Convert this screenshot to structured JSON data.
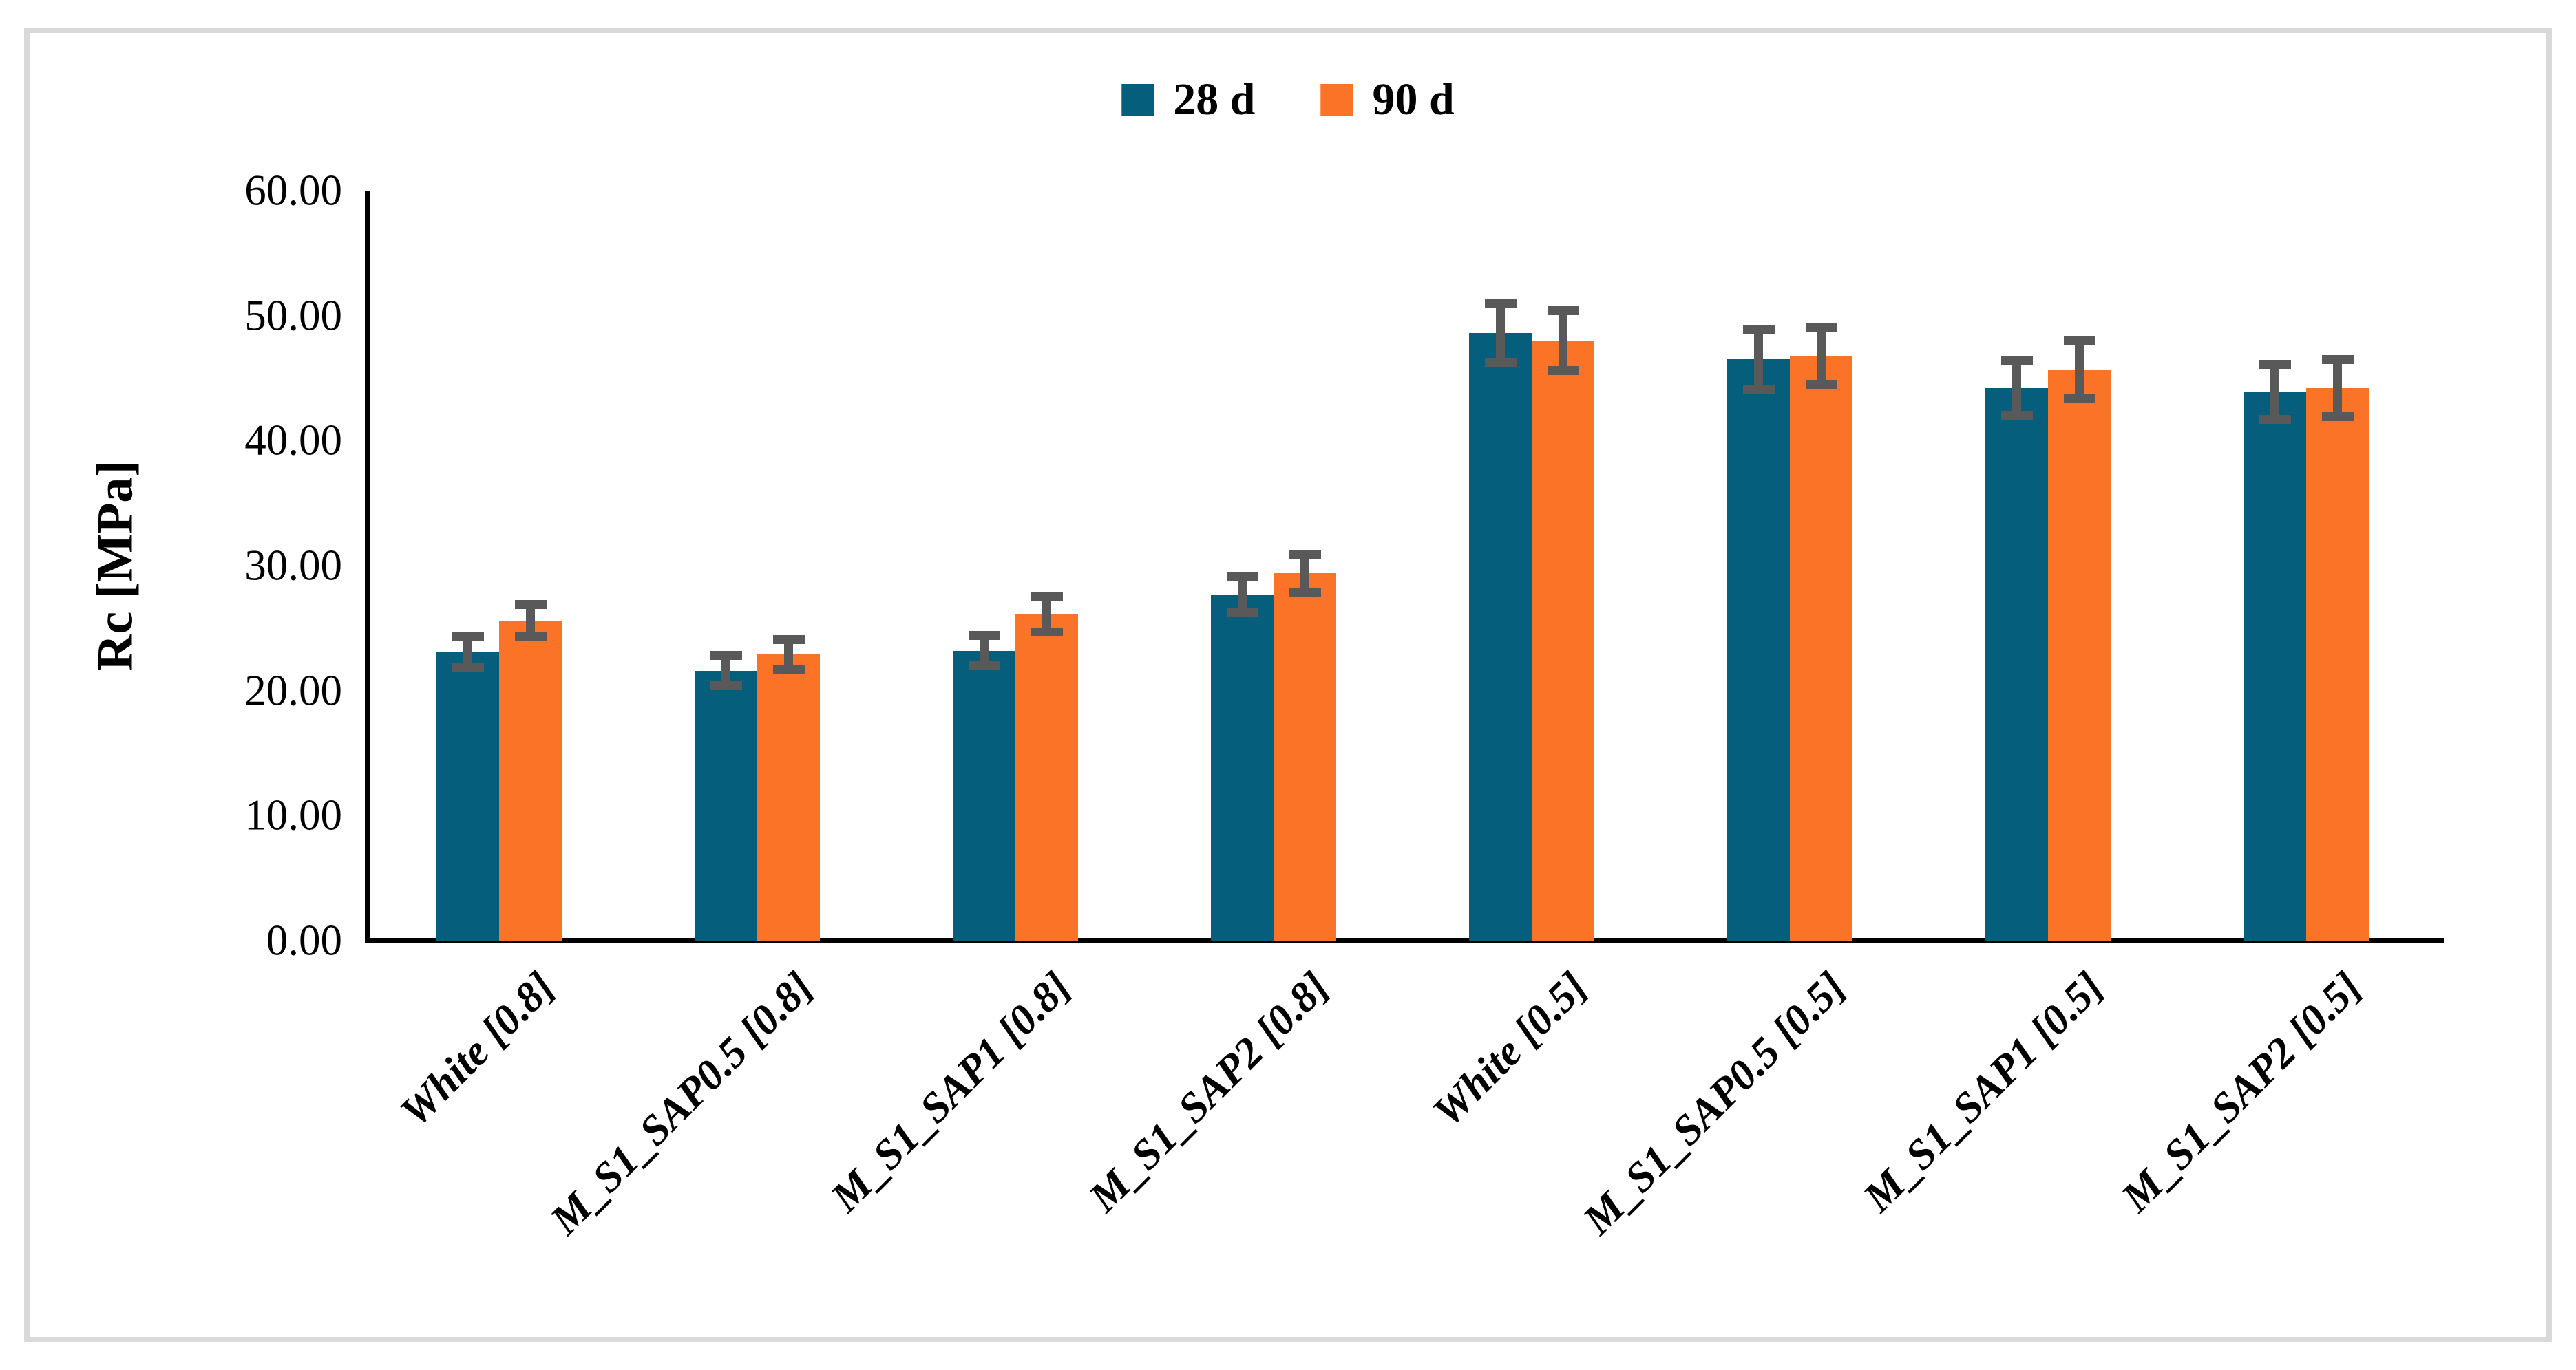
{
  "chart_data": {
    "type": "bar",
    "title": "",
    "xlabel": "",
    "ylabel": "Rc [MPa]",
    "ylim": [
      0,
      60
    ],
    "ytick_step": 10,
    "ytick_labels": [
      "0.00",
      "10.00",
      "20.00",
      "30.00",
      "40.00",
      "50.00",
      "60.00"
    ],
    "grid": false,
    "legend_position": "top-center",
    "categories": [
      "White [0.8]",
      "M_S1_SAP0.5 [0.8]",
      "M_S1_SAP1 [0.8]",
      "M_S1_SAP2 [0.8]",
      "White [0.5]",
      "M_S1_SAP0.5 [0.5]",
      "M_S1_SAP1 [0.5]",
      "M_S1_SAP2 [0.5]"
    ],
    "series": [
      {
        "name": "28 d",
        "color": "#065E7D",
        "values": [
          23.1,
          21.6,
          23.2,
          27.7,
          48.6,
          46.5,
          44.2,
          43.9
        ],
        "errors": [
          1.2,
          1.2,
          1.2,
          1.4,
          2.4,
          2.4,
          2.2,
          2.2
        ]
      },
      {
        "name": "90 d",
        "color": "#FB7327",
        "values": [
          25.6,
          22.9,
          26.1,
          29.4,
          48.0,
          46.8,
          45.7,
          44.2
        ],
        "errors": [
          1.3,
          1.2,
          1.4,
          1.5,
          2.4,
          2.3,
          2.3,
          2.3
        ]
      }
    ],
    "error_bar_color": "#595959",
    "axis_color": "#000000",
    "frame_color": "#D9D9D9"
  }
}
